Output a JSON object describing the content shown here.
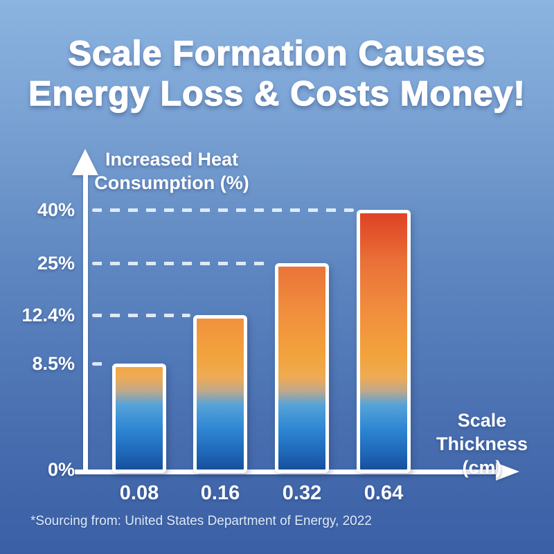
{
  "title": {
    "line1": "Scale Formation Causes",
    "line2": "Energy Loss & Costs Money!"
  },
  "y_axis": {
    "title_line1": "Increased Heat",
    "title_line2": "Consumption (%)",
    "zero_label": "0%"
  },
  "x_axis": {
    "title_line1": "Scale Thickness",
    "title_line2": "(cm)"
  },
  "source_note": "*Sourcing from: United States Department of Energy, 2022",
  "chart_data": {
    "type": "bar",
    "title": "Scale Formation Causes Energy Loss & Costs Money!",
    "categories": [
      "0.08",
      "0.16",
      "0.32",
      "0.64"
    ],
    "values": [
      8.5,
      12.4,
      25,
      40
    ],
    "tick_labels": [
      "8.5%",
      "12.4%",
      "25%",
      "40%"
    ],
    "baseline_label": "0%",
    "xlabel": "Scale Thickness (cm)",
    "ylabel": "Increased Heat Consumption (%)",
    "ylim": [
      0,
      45
    ],
    "grid": "dashed horizontal line at each bar value, from y-axis to bar",
    "legend": "none",
    "axis_color": "#ffffff",
    "bar_gradient_top_to_bottom": [
      "#dd3f24",
      "#e96f37",
      "#f18e3e",
      "#f2a33c",
      "#56a3d9",
      "#2e86d3",
      "#174f9c"
    ],
    "background_gradient": [
      "#8cb4e0",
      "#5e87c1",
      "#3a5fa5"
    ],
    "source": "*Sourcing from: United States Department of Energy, 2022"
  }
}
